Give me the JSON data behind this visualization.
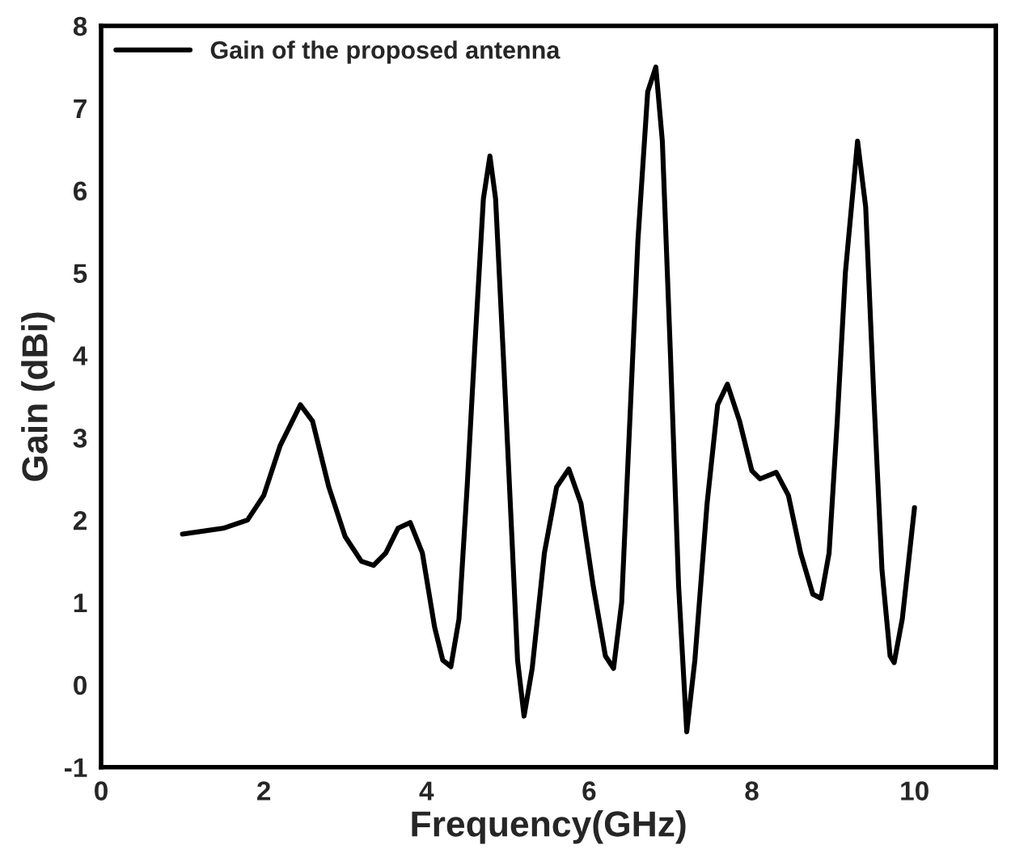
{
  "chart_data": {
    "type": "line",
    "xlabel": "Frequency(GHz)",
    "ylabel": "Gain (dBi)",
    "xlim": [
      0,
      11
    ],
    "ylim": [
      -1,
      8
    ],
    "xticks": [
      0,
      2,
      4,
      6,
      8,
      10
    ],
    "yticks": [
      -1,
      0,
      1,
      2,
      3,
      4,
      5,
      6,
      7,
      8
    ],
    "grid": false,
    "legend": "top left",
    "line_style": "solid",
    "series": [
      {
        "name": "Gain of the proposed antenna",
        "color": "#000000",
        "x": [
          1.0,
          1.5,
          1.8,
          2.0,
          2.2,
          2.45,
          2.6,
          2.8,
          3.0,
          3.2,
          3.35,
          3.5,
          3.65,
          3.8,
          3.95,
          4.1,
          4.2,
          4.3,
          4.4,
          4.5,
          4.6,
          4.7,
          4.78,
          4.85,
          4.95,
          5.05,
          5.12,
          5.2,
          5.3,
          5.45,
          5.6,
          5.75,
          5.9,
          6.05,
          6.2,
          6.3,
          6.4,
          6.5,
          6.6,
          6.72,
          6.82,
          6.9,
          7.0,
          7.1,
          7.2,
          7.3,
          7.45,
          7.58,
          7.7,
          7.85,
          8.0,
          8.1,
          8.3,
          8.45,
          8.6,
          8.75,
          8.85,
          8.95,
          9.05,
          9.15,
          9.3,
          9.4,
          9.5,
          9.6,
          9.7,
          9.75,
          9.85,
          10.0
        ],
        "values": [
          1.83,
          1.9,
          2.0,
          2.3,
          2.9,
          3.4,
          3.2,
          2.4,
          1.8,
          1.5,
          1.45,
          1.6,
          1.9,
          1.97,
          1.6,
          0.7,
          0.3,
          0.22,
          0.8,
          2.4,
          4.2,
          5.9,
          6.42,
          5.9,
          3.9,
          1.8,
          0.3,
          -0.38,
          0.2,
          1.6,
          2.4,
          2.62,
          2.2,
          1.2,
          0.35,
          0.2,
          1.0,
          3.2,
          5.4,
          7.2,
          7.5,
          6.6,
          4.0,
          1.2,
          -0.57,
          0.3,
          2.2,
          3.4,
          3.65,
          3.2,
          2.6,
          2.5,
          2.58,
          2.3,
          1.6,
          1.1,
          1.05,
          1.6,
          3.2,
          5.0,
          6.6,
          5.8,
          3.5,
          1.4,
          0.35,
          0.27,
          0.8,
          2.15
        ]
      }
    ]
  }
}
